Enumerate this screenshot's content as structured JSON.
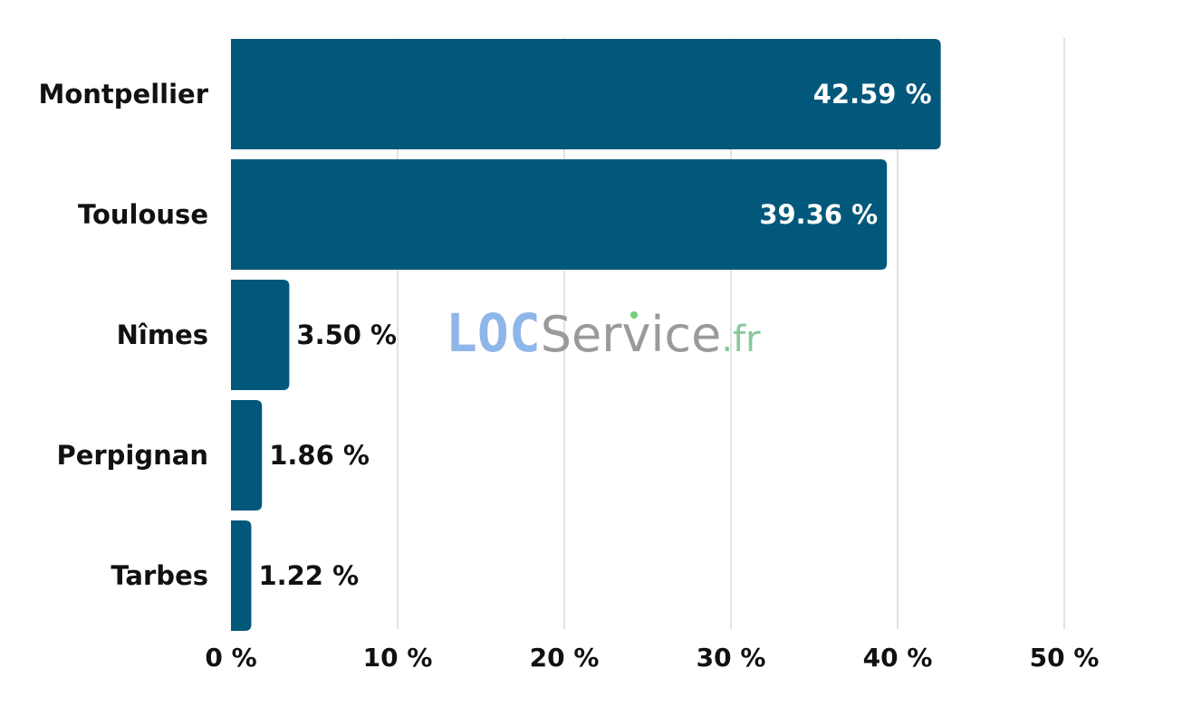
{
  "chart_data": {
    "type": "bar",
    "orientation": "horizontal",
    "categories": [
      "Montpellier",
      "Toulouse",
      "Nîmes",
      "Perpignan",
      "Tarbes"
    ],
    "values": [
      42.59,
      39.36,
      3.5,
      1.86,
      1.22
    ],
    "data_labels": [
      "42.59 %",
      "39.36 %",
      "3.50 %",
      "1.86 %",
      "1.22 %"
    ],
    "xlim": [
      0,
      50
    ],
    "x_ticks": [
      0,
      10,
      20,
      30,
      40,
      50
    ],
    "x_tick_labels": [
      "0 %",
      "10 %",
      "20 %",
      "30 %",
      "40 %",
      "50 %"
    ],
    "grid": true,
    "legend": "none",
    "title": "",
    "xlabel": "",
    "ylabel": ""
  },
  "watermark": {
    "part1": "LOC",
    "part2": "Service",
    "part3": ".fr"
  },
  "colors": {
    "bar": "#02587b",
    "grid": "#d9d9d9",
    "label_inside": "#ffffff",
    "label_outside": "#111111",
    "watermark_loc": "#8fb6e8",
    "watermark_service": "#9a9a9a",
    "watermark_fr": "#86c99a",
    "watermark_dot": "#6fd17a"
  }
}
